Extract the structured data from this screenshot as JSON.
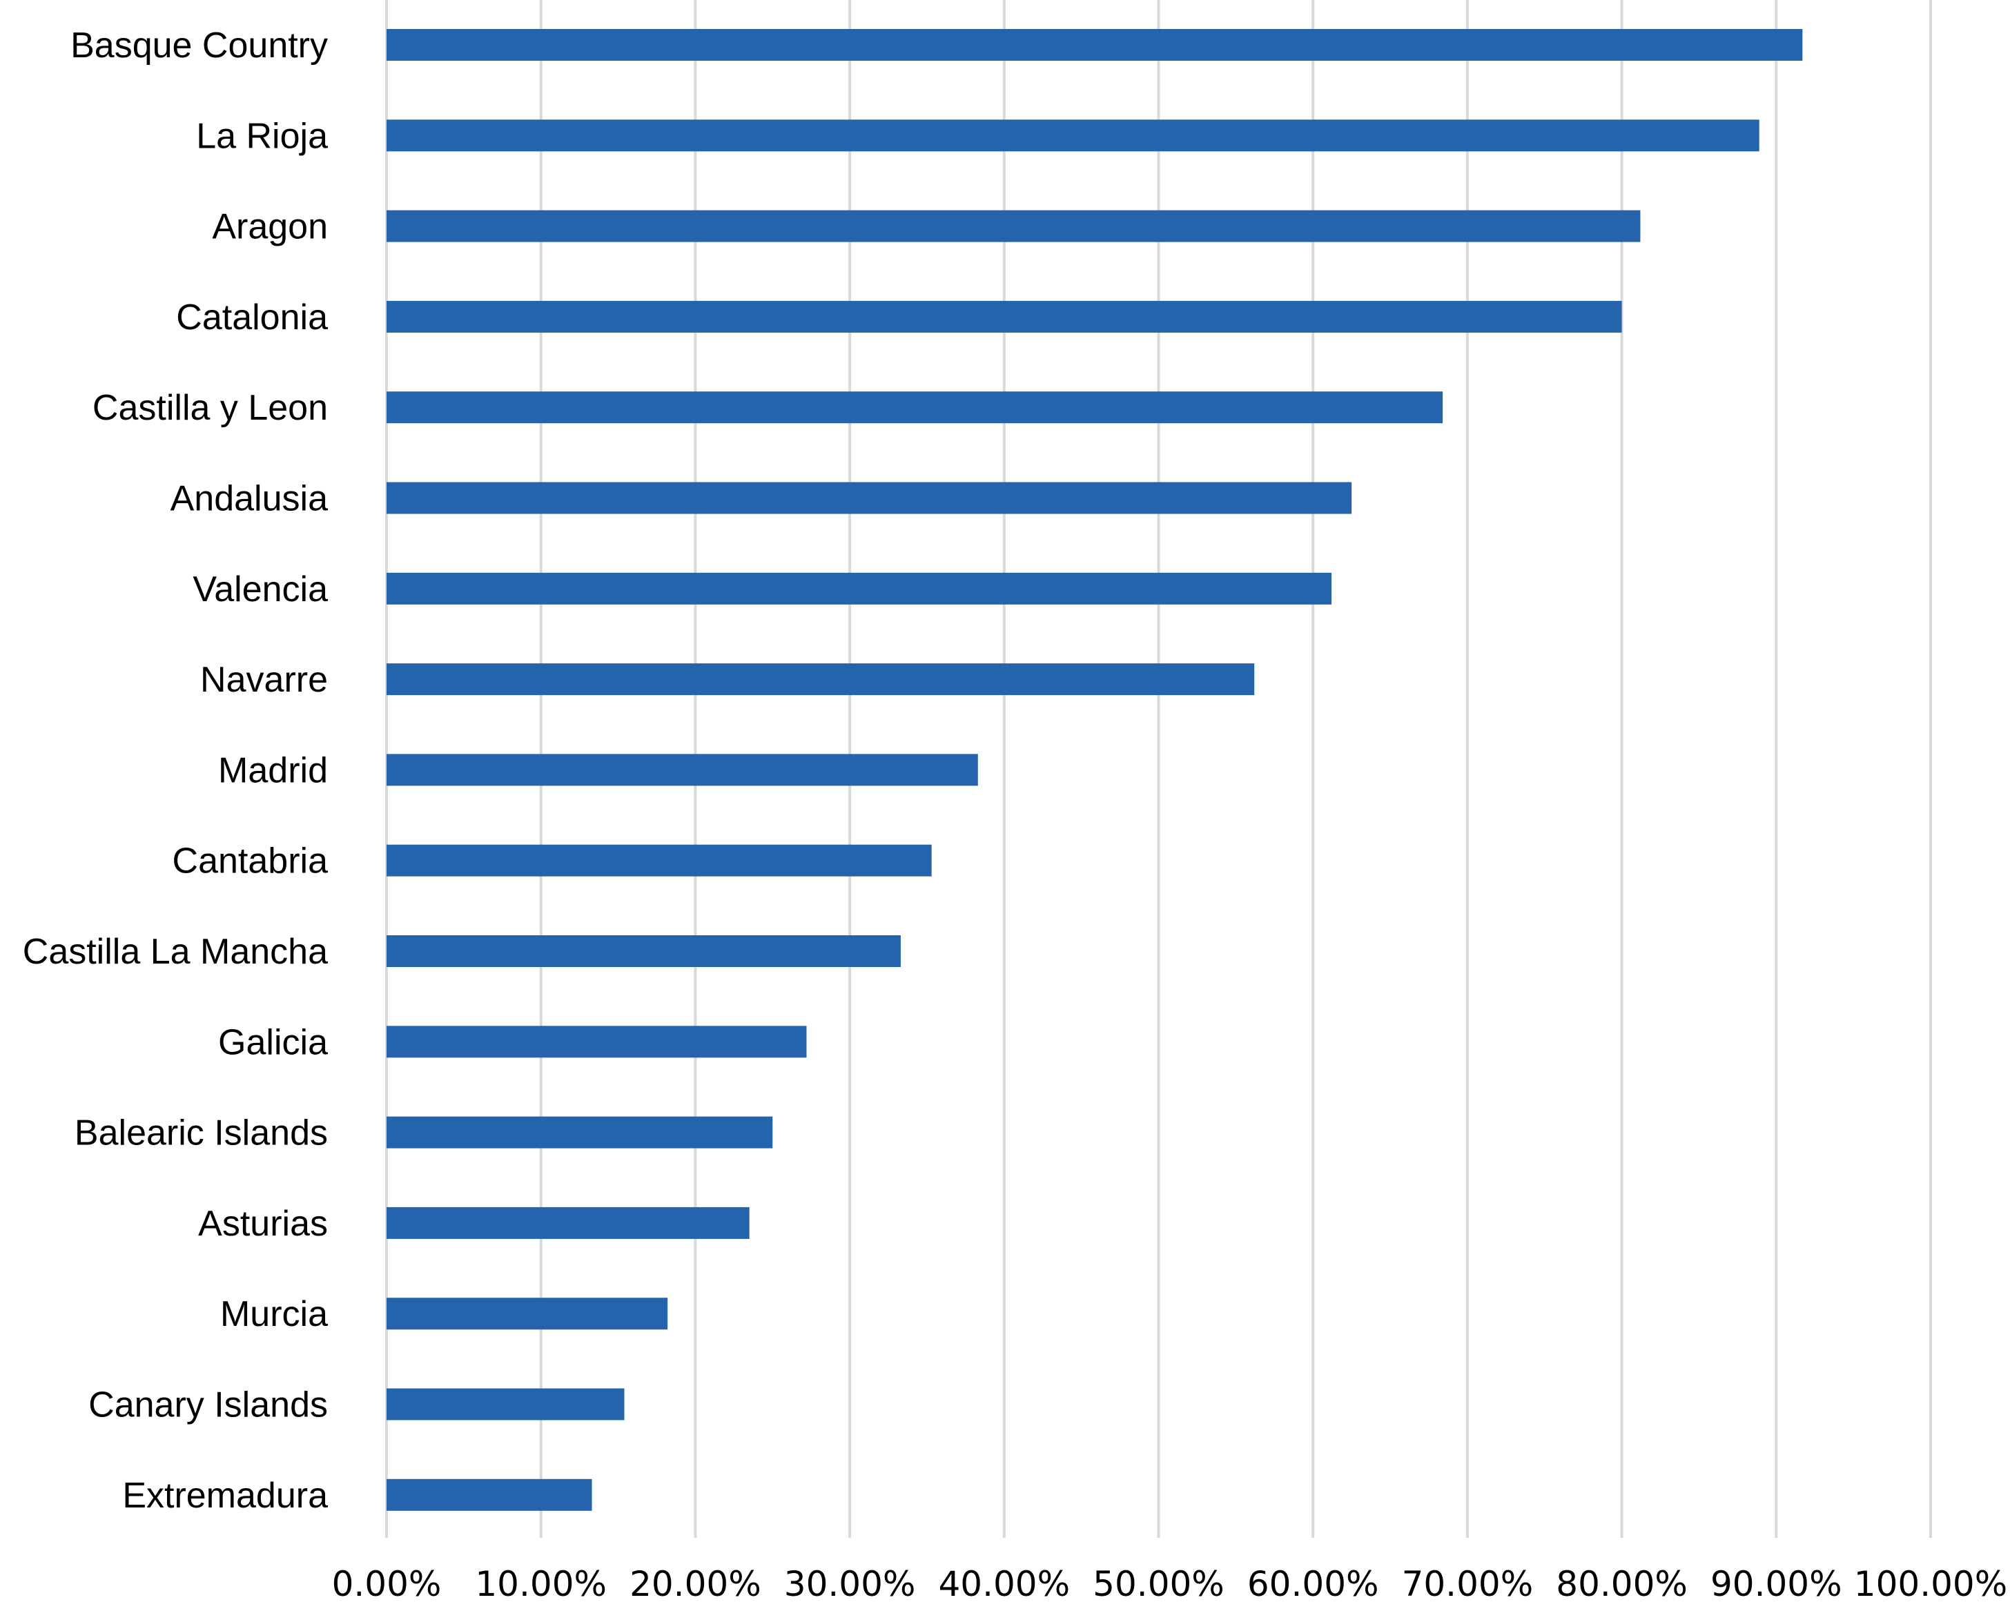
{
  "chart_data": {
    "type": "bar",
    "orientation": "horizontal",
    "title": "",
    "xlabel": "",
    "ylabel": "",
    "categories": [
      "Basque Country",
      "La Rioja",
      "Aragon",
      "Catalonia",
      "Castilla y Leon",
      "Andalusia",
      "Valencia",
      "Navarre",
      "Madrid",
      "Cantabria",
      "Castilla La Mancha",
      "Galicia",
      "Balearic Islands",
      "Asturias",
      "Murcia",
      "Canary Islands",
      "Extremadura"
    ],
    "values": [
      91.7,
      88.9,
      81.2,
      80.0,
      68.4,
      62.5,
      61.2,
      56.2,
      38.3,
      35.3,
      33.3,
      27.2,
      25.0,
      23.5,
      18.2,
      15.4,
      13.3
    ],
    "xlim": [
      0,
      100
    ],
    "x_ticks": [
      "0.00%",
      "10.00%",
      "20.00%",
      "30.00%",
      "40.00%",
      "50.00%",
      "60.00%",
      "70.00%",
      "80.00%",
      "90.00%",
      "100.00%"
    ],
    "grid": "vertical",
    "legend": "none",
    "colors": {
      "bar": "#2563ad",
      "grid": "#d9d9d9",
      "text": "#000000"
    }
  }
}
